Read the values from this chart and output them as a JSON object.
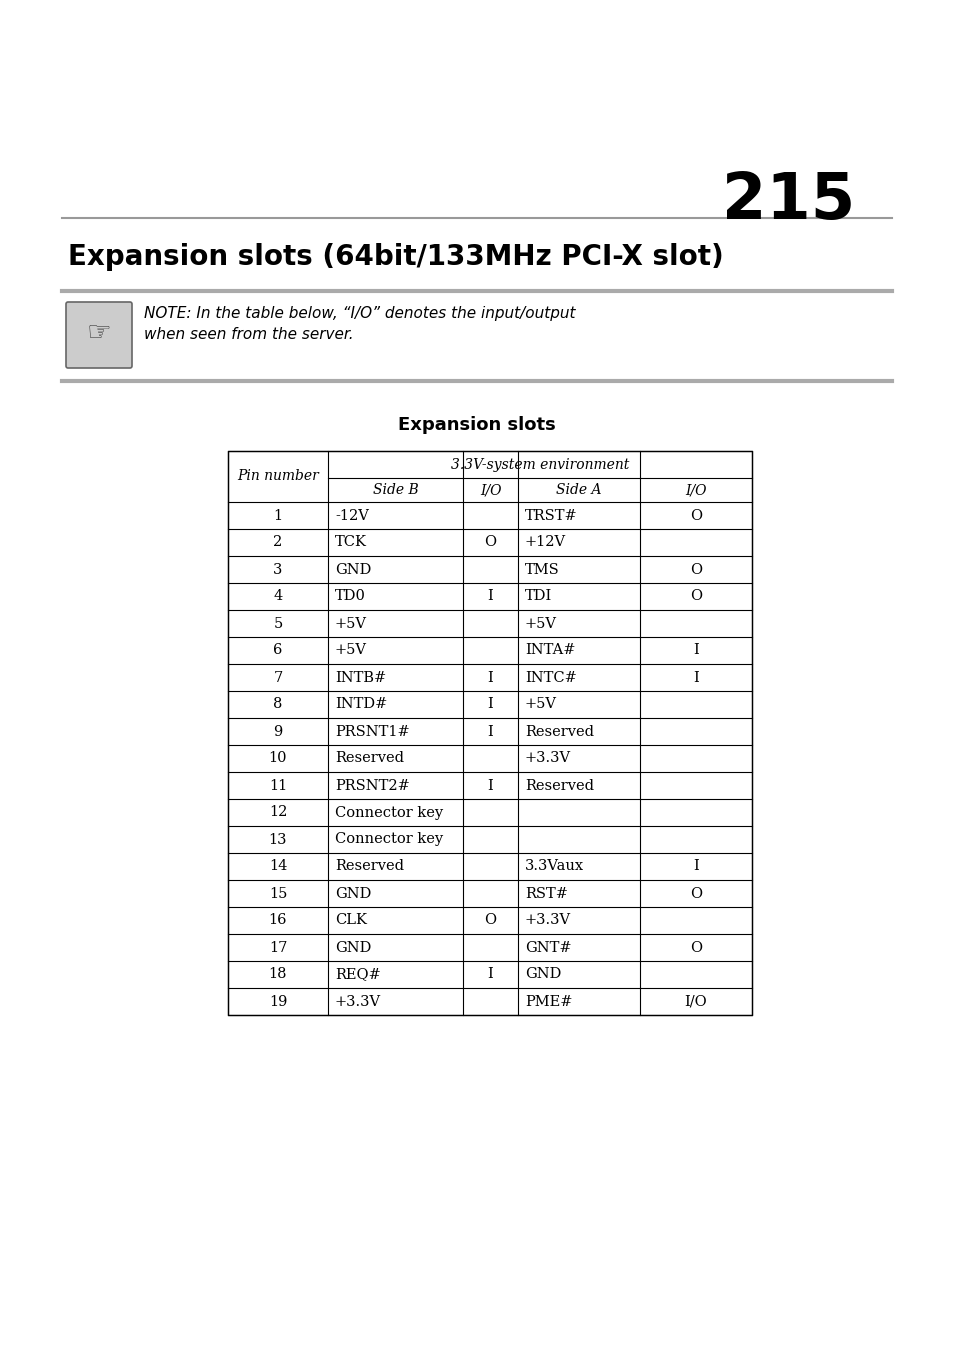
{
  "page_number": "215",
  "title": "Expansion slots (64bit/133MHz PCI-X slot)",
  "note_text": "NOTE: In the table below, “I/O” denotes the input/output\nwhen seen from the server.",
  "table_title": "Expansion slots",
  "table_rows": [
    [
      "1",
      "-12V",
      "",
      "TRST#",
      "O"
    ],
    [
      "2",
      "TCK",
      "O",
      "+12V",
      ""
    ],
    [
      "3",
      "GND",
      "",
      "TMS",
      "O"
    ],
    [
      "4",
      "TD0",
      "I",
      "TDI",
      "O"
    ],
    [
      "5",
      "+5V",
      "",
      "+5V",
      ""
    ],
    [
      "6",
      "+5V",
      "",
      "INTA#",
      "I"
    ],
    [
      "7",
      "INTB#",
      "I",
      "INTC#",
      "I"
    ],
    [
      "8",
      "INTD#",
      "I",
      "+5V",
      ""
    ],
    [
      "9",
      "PRSNT1#",
      "I",
      "Reserved",
      ""
    ],
    [
      "10",
      "Reserved",
      "",
      "+3.3V",
      ""
    ],
    [
      "11",
      "PRSNT2#",
      "I",
      "Reserved",
      ""
    ],
    [
      "12",
      "Connector key",
      "",
      "",
      ""
    ],
    [
      "13",
      "Connector key",
      "",
      "",
      ""
    ],
    [
      "14",
      "Reserved",
      "",
      "3.3Vaux",
      "I"
    ],
    [
      "15",
      "GND",
      "",
      "RST#",
      "O"
    ],
    [
      "16",
      "CLK",
      "O",
      "+3.3V",
      ""
    ],
    [
      "17",
      "GND",
      "",
      "GNT#",
      "O"
    ],
    [
      "18",
      "REQ#",
      "I",
      "GND",
      ""
    ],
    [
      "19",
      "+3.3V",
      "",
      "PME#",
      "I/O"
    ]
  ],
  "bg_color": "#ffffff",
  "line_color": "#000000"
}
